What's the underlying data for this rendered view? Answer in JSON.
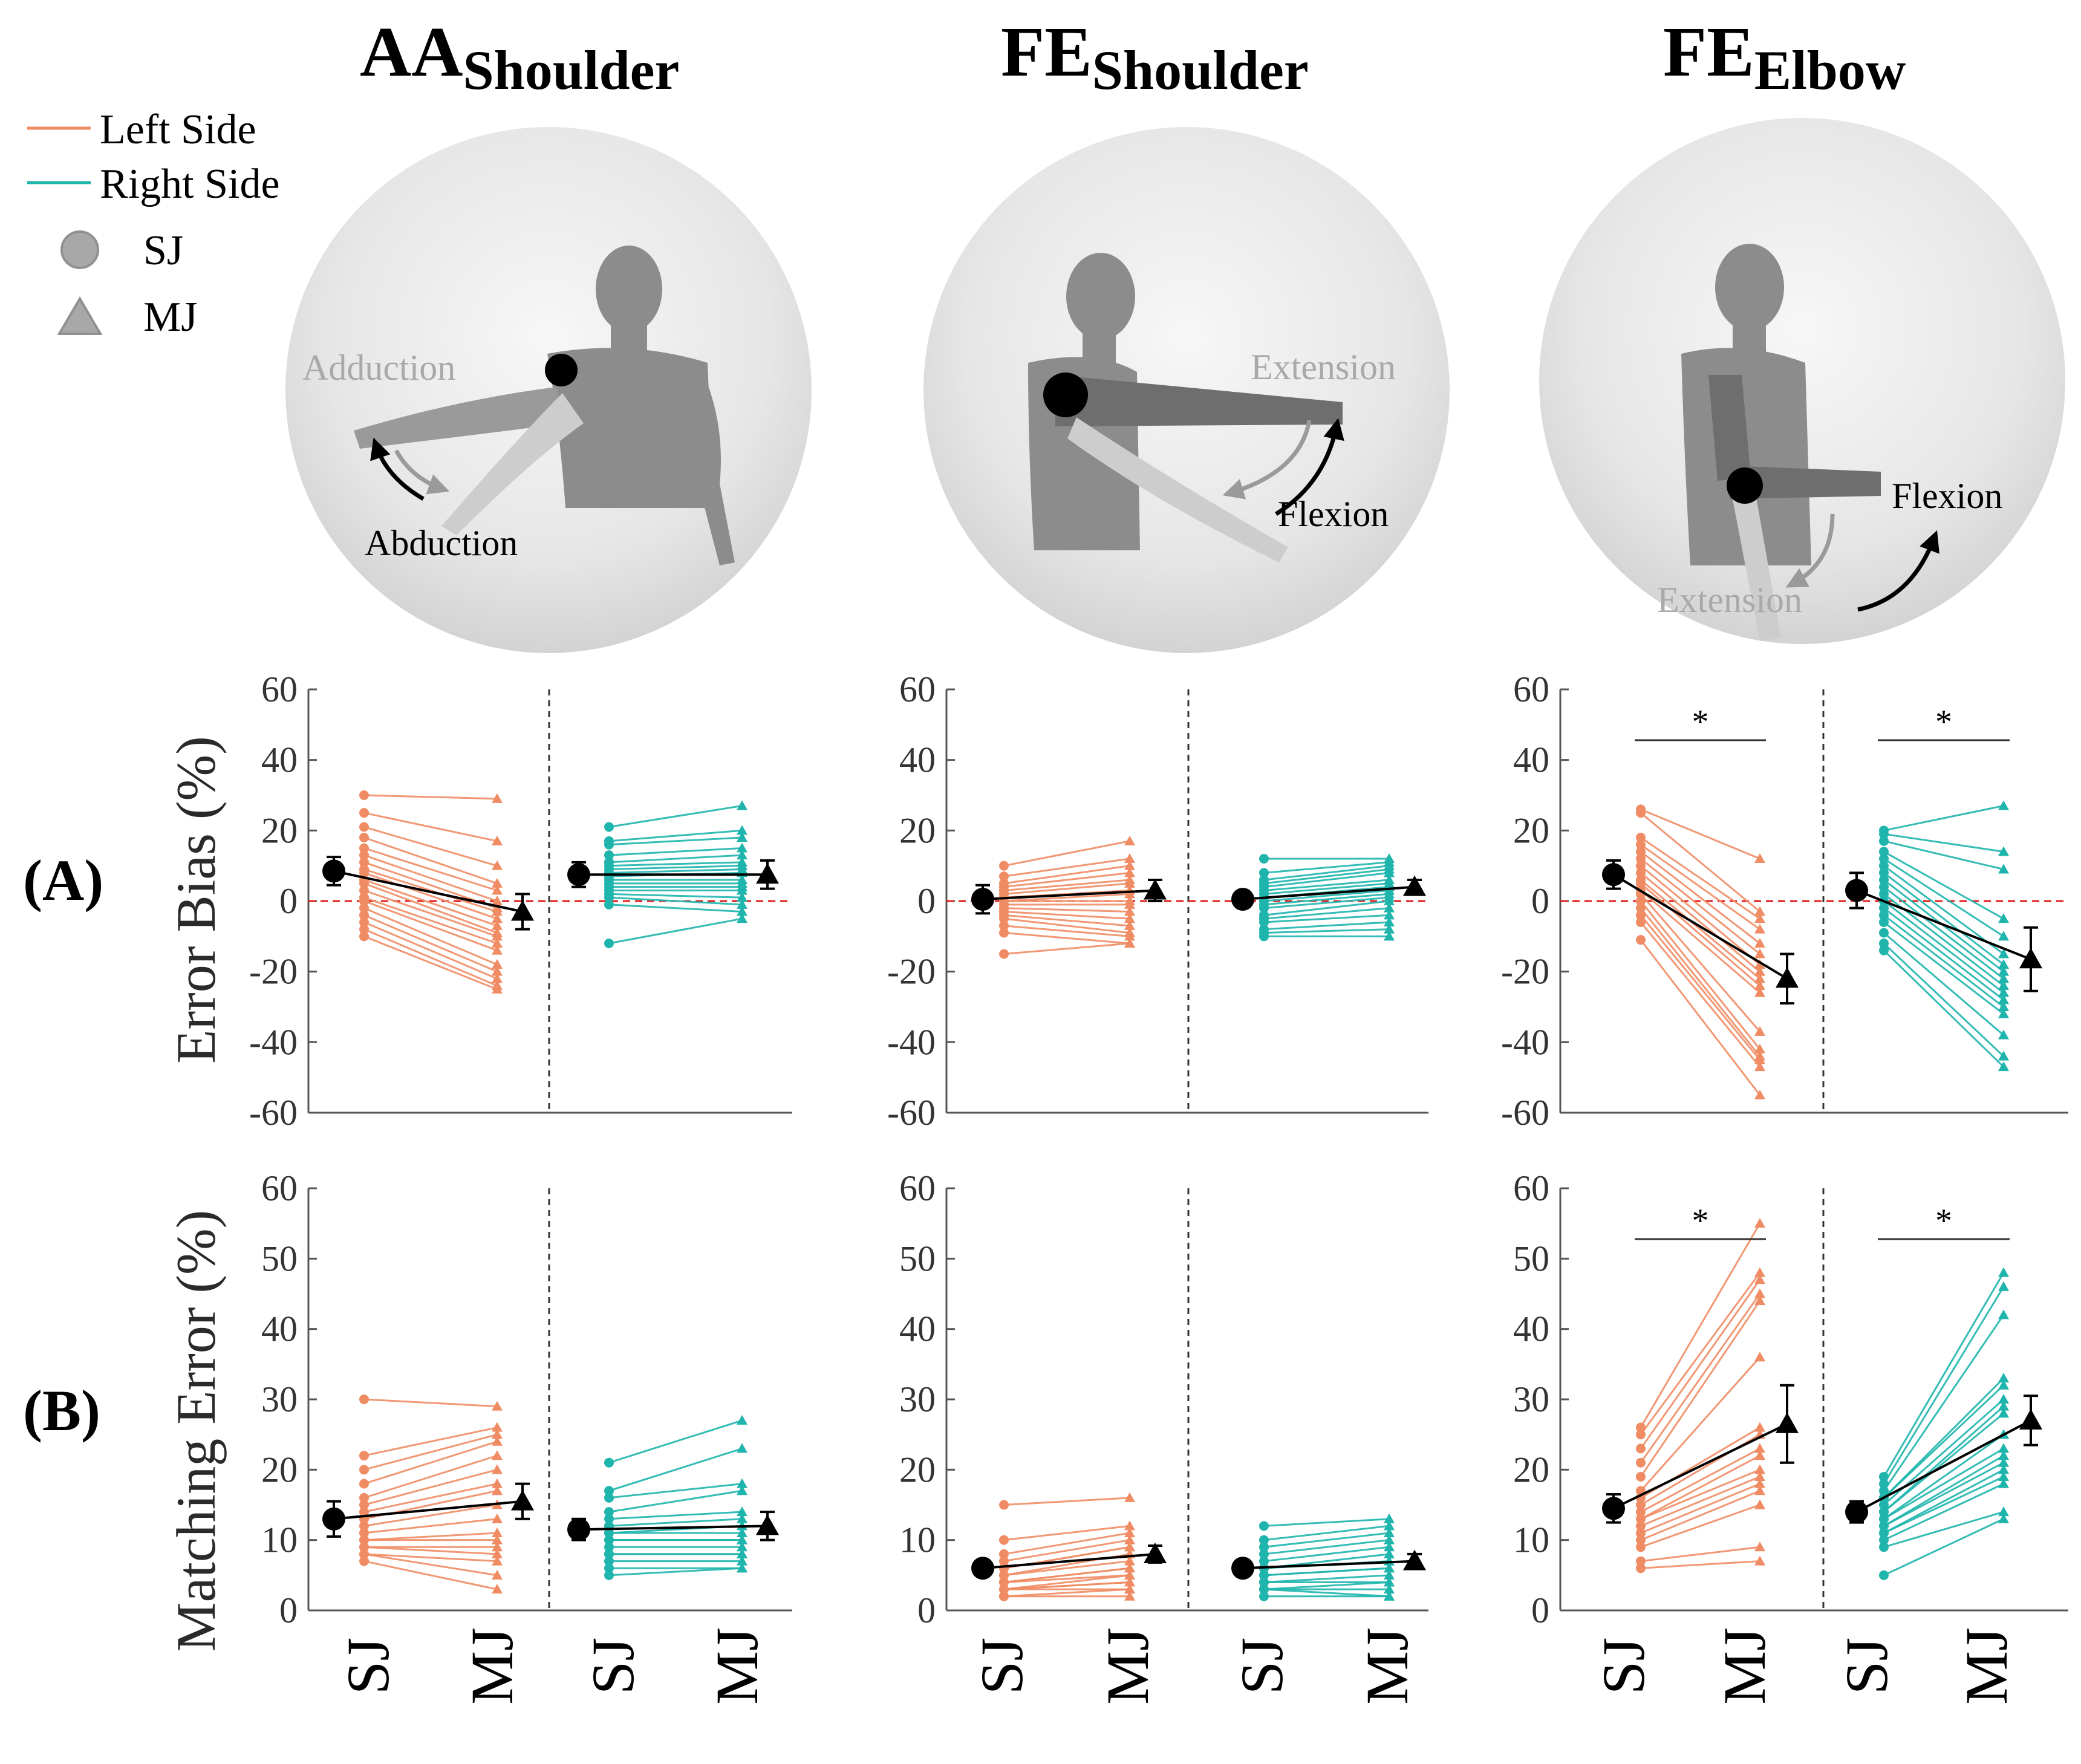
{
  "colors": {
    "left": "#f08c64",
    "right": "#1fb5ad",
    "mean": "#000000",
    "zero_line": "#e02020",
    "marker_legend": "#999999"
  },
  "legend": {
    "left_side": "Left Side",
    "right_side": "Right Side",
    "sj": "SJ",
    "mj": "MJ"
  },
  "columns": [
    {
      "title_main": "AA",
      "title_sub": "Shoulder",
      "illustration": {
        "gray_label": "Adduction",
        "black_label": "Abduction"
      }
    },
    {
      "title_main": "FE",
      "title_sub": "Shoulder",
      "illustration": {
        "gray_label": "Extension",
        "black_label": "Flexion"
      }
    },
    {
      "title_main": "FE",
      "title_sub": "Elbow",
      "illustration": {
        "gray_label": "Extension",
        "black_label": "Flexion"
      }
    }
  ],
  "rows": [
    {
      "label": "(A)",
      "ylabel": "Error Bias (%)"
    },
    {
      "label": "(B)",
      "ylabel": "Matching Error (%)"
    }
  ],
  "categories": [
    "SJ",
    "MJ",
    "SJ",
    "MJ"
  ],
  "significance_marker": "*",
  "chart_data": [
    {
      "type": "scatter",
      "row": "A",
      "column": "AA Shoulder",
      "ylabel": "Error Bias (%)",
      "ylim": [
        -60,
        60
      ],
      "yticks": [
        60,
        40,
        20,
        0,
        -20,
        -40,
        -60
      ],
      "tick_labels": [
        "60",
        "40",
        "20",
        "0",
        "-20",
        "-40",
        "-60"
      ],
      "zero_line": true,
      "groups": [
        {
          "side": "Left",
          "sj": [
            30,
            25,
            21,
            18,
            15,
            13,
            11,
            9,
            8,
            6,
            5,
            3,
            1,
            0,
            -2,
            -4,
            -6,
            -8,
            -10
          ],
          "mj": [
            29,
            17,
            10,
            5,
            3,
            0,
            -2,
            -3,
            -5,
            -7,
            -9,
            -10,
            -12,
            -14,
            -18,
            -20,
            -22,
            -24,
            -25
          ],
          "sj_mean": 8.5,
          "sj_err": 4,
          "mj_mean": -3,
          "mj_err": 5,
          "significant": false
        },
        {
          "side": "Right",
          "sj": [
            21,
            17,
            16,
            13,
            11,
            10,
            9,
            8,
            7,
            6,
            5,
            4,
            3,
            2,
            1,
            -1,
            -12
          ],
          "mj": [
            27,
            20,
            18,
            15,
            13,
            11,
            10,
            9,
            8,
            6,
            5,
            4,
            3,
            1,
            -1,
            -3,
            -5
          ],
          "sj_mean": 7.5,
          "sj_err": 3.5,
          "mj_mean": 7.5,
          "mj_err": 4,
          "significant": false
        }
      ]
    },
    {
      "type": "scatter",
      "row": "A",
      "column": "FE Shoulder",
      "ylabel": "Error Bias (%)",
      "ylim": [
        -60,
        60
      ],
      "yticks": [
        60,
        40,
        20,
        0,
        -20,
        -40,
        -60
      ],
      "tick_labels": [
        "60",
        "40",
        "20",
        "0",
        "-20",
        "-40",
        "-60"
      ],
      "zero_line": true,
      "groups": [
        {
          "side": "Left",
          "sj": [
            10,
            7,
            5,
            4,
            3,
            2,
            1,
            0,
            0,
            -1,
            -2,
            -3,
            -4,
            -5,
            -7,
            -9,
            -15
          ],
          "mj": [
            17,
            12,
            10,
            8,
            6,
            5,
            3,
            2,
            0,
            -1,
            -3,
            -5,
            -7,
            -9,
            -10,
            -12,
            -12
          ],
          "sj_mean": 0.5,
          "sj_err": 4,
          "mj_mean": 3,
          "mj_err": 3,
          "significant": false
        },
        {
          "side": "Right",
          "sj": [
            12,
            8,
            6,
            5,
            4,
            3,
            2,
            1,
            0,
            -1,
            -2,
            -4,
            -5,
            -6,
            -8,
            -9,
            -10
          ],
          "mj": [
            12,
            11,
            10,
            9,
            8,
            6,
            5,
            4,
            3,
            2,
            1,
            0,
            -2,
            -4,
            -6,
            -8,
            -10
          ],
          "sj_mean": 0.5,
          "sj_err": 2,
          "mj_mean": 4,
          "mj_err": 2,
          "significant": false
        }
      ]
    },
    {
      "type": "scatter",
      "row": "A",
      "column": "FE Elbow",
      "ylabel": "Error Bias (%)",
      "ylim": [
        -60,
        60
      ],
      "yticks": [
        60,
        40,
        20,
        0,
        -20,
        -40,
        -60
      ],
      "tick_labels": [
        "60",
        "40",
        "20",
        "0",
        "-20",
        "-40",
        "-60"
      ],
      "zero_line": true,
      "groups": [
        {
          "side": "Left",
          "sj": [
            26,
            25,
            18,
            16,
            14,
            12,
            10,
            8,
            6,
            5,
            3,
            2,
            0,
            -2,
            -4,
            -6,
            -11
          ],
          "mj": [
            12,
            -3,
            -5,
            -8,
            -12,
            -15,
            -18,
            -20,
            -22,
            -24,
            -26,
            -37,
            -42,
            -44,
            -45,
            -47,
            -55
          ],
          "sj_mean": 7.5,
          "sj_err": 4,
          "mj_mean": -22,
          "mj_err": 7,
          "significant": true
        },
        {
          "side": "Right",
          "sj": [
            20,
            19,
            17,
            14,
            12,
            10,
            8,
            6,
            4,
            2,
            0,
            -2,
            -4,
            -6,
            -9,
            -12,
            -14
          ],
          "mj": [
            27,
            14,
            9,
            -5,
            -10,
            -15,
            -18,
            -20,
            -22,
            -24,
            -26,
            -28,
            -30,
            -32,
            -38,
            -44,
            -47
          ],
          "sj_mean": 3,
          "sj_err": 5,
          "mj_mean": -16.5,
          "mj_err": 9,
          "significant": true
        }
      ]
    },
    {
      "type": "scatter",
      "row": "B",
      "column": "AA Shoulder",
      "ylabel": "Matching Error (%)",
      "ylim": [
        0,
        60
      ],
      "yticks": [
        60,
        50,
        40,
        30,
        20,
        10,
        0
      ],
      "tick_labels": [
        "60",
        "50",
        "40",
        "30",
        "20",
        "10",
        "0"
      ],
      "zero_line": false,
      "groups": [
        {
          "side": "Left",
          "sj": [
            30,
            22,
            20,
            18,
            16,
            15,
            14,
            13,
            12,
            11,
            10,
            10,
            9,
            9,
            8,
            8,
            7
          ],
          "mj": [
            29,
            26,
            25,
            24,
            22,
            20,
            18,
            17,
            15,
            13,
            11,
            10,
            9,
            8,
            7,
            5,
            3
          ],
          "sj_mean": 13,
          "sj_err": 2.5,
          "mj_mean": 15.5,
          "mj_err": 2.5,
          "significant": false
        },
        {
          "side": "Right",
          "sj": [
            21,
            17,
            16,
            14,
            13,
            12,
            11,
            11,
            10,
            10,
            9,
            8,
            8,
            7,
            6,
            5
          ],
          "mj": [
            27,
            23,
            18,
            17,
            14,
            13,
            12,
            11,
            10,
            10,
            9,
            8,
            8,
            7,
            6,
            6
          ],
          "sj_mean": 11.5,
          "sj_err": 1.5,
          "mj_mean": 12,
          "mj_err": 2,
          "significant": false
        }
      ]
    },
    {
      "type": "scatter",
      "row": "B",
      "column": "FE Shoulder",
      "ylabel": "Matching Error (%)",
      "ylim": [
        0,
        60
      ],
      "yticks": [
        60,
        50,
        40,
        30,
        20,
        10,
        0
      ],
      "tick_labels": [
        "60",
        "50",
        "40",
        "30",
        "20",
        "10",
        "0"
      ],
      "zero_line": false,
      "groups": [
        {
          "side": "Left",
          "sj": [
            15,
            10,
            8,
            7,
            6,
            6,
            5,
            5,
            4,
            4,
            4,
            3,
            3,
            3,
            3,
            2,
            2
          ],
          "mj": [
            16,
            12,
            11,
            10,
            9,
            9,
            8,
            7,
            6,
            6,
            5,
            5,
            4,
            4,
            3,
            3,
            2
          ],
          "sj_mean": 6,
          "sj_err": 1,
          "mj_mean": 8,
          "mj_err": 1.2,
          "significant": false
        },
        {
          "side": "Right",
          "sj": [
            12,
            10,
            9,
            8,
            7,
            6,
            6,
            5,
            5,
            4,
            4,
            3,
            3,
            3,
            2
          ],
          "mj": [
            13,
            12,
            11,
            10,
            9,
            8,
            7,
            6,
            6,
            5,
            4,
            4,
            3,
            2,
            2
          ],
          "sj_mean": 6,
          "sj_err": 1,
          "mj_mean": 7,
          "mj_err": 1,
          "significant": false
        }
      ]
    },
    {
      "type": "scatter",
      "row": "B",
      "column": "FE Elbow",
      "ylabel": "Matching Error (%)",
      "ylim": [
        0,
        60
      ],
      "yticks": [
        60,
        50,
        40,
        30,
        20,
        10,
        0
      ],
      "tick_labels": [
        "60",
        "50",
        "40",
        "30",
        "20",
        "10",
        "0"
      ],
      "zero_line": false,
      "groups": [
        {
          "side": "Left",
          "sj": [
            26,
            25,
            23,
            21,
            19,
            17,
            16,
            15,
            14,
            13,
            13,
            12,
            11,
            10,
            9,
            7,
            6
          ],
          "mj": [
            55,
            48,
            47,
            45,
            44,
            36,
            26,
            25,
            23,
            22,
            20,
            19,
            18,
            17,
            15,
            9,
            7
          ],
          "sj_mean": 14.5,
          "sj_err": 2,
          "mj_mean": 26.5,
          "mj_err": 5.5,
          "significant": true
        },
        {
          "side": "Right",
          "sj": [
            19,
            18,
            17,
            16,
            16,
            15,
            14,
            14,
            13,
            13,
            12,
            12,
            11,
            11,
            10,
            9,
            5
          ],
          "mj": [
            48,
            46,
            42,
            33,
            32,
            30,
            29,
            28,
            25,
            23,
            22,
            21,
            20,
            19,
            18,
            14,
            13
          ],
          "sj_mean": 14,
          "sj_err": 1.5,
          "mj_mean": 27,
          "mj_err": 3.5,
          "significant": true
        }
      ]
    }
  ]
}
